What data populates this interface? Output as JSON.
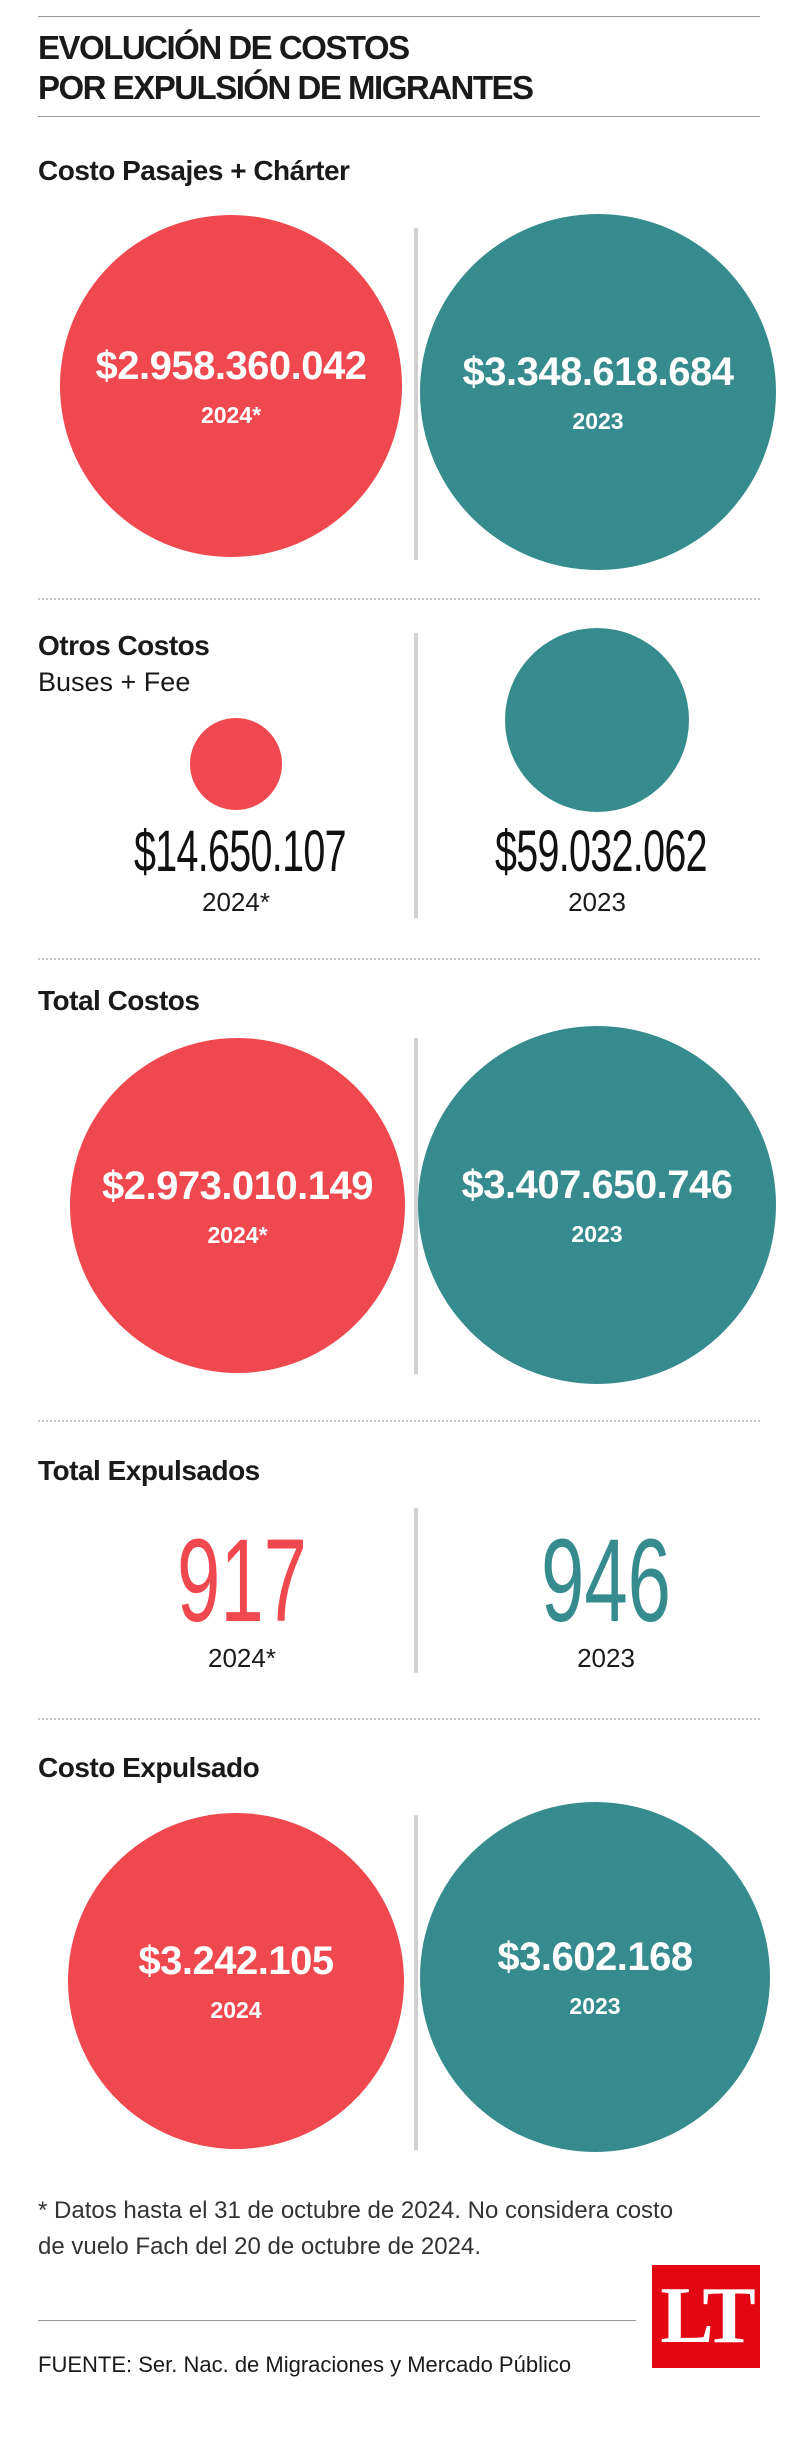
{
  "title_line1": "EVOLUCIÓN DE COSTOS",
  "title_line2": "POR EXPULSIÓN DE MIGRANTES",
  "colors": {
    "y2024": "#f0484f",
    "y2023": "#368b8f"
  },
  "chart_data": [
    {
      "type": "bubble",
      "title": "Costo Pasajes + Chárter",
      "categories": [
        "2024*",
        "2023"
      ],
      "values": [
        2958360042,
        3348618684
      ],
      "labels": [
        "$2.958.360.042",
        "$3.348.618.684"
      ]
    },
    {
      "type": "bubble",
      "title": "Otros Costos",
      "subtitle": "Buses + Fee",
      "categories": [
        "2024*",
        "2023"
      ],
      "values": [
        14650107,
        59032062
      ],
      "labels": [
        "$14.650.107",
        "$59.032.062"
      ]
    },
    {
      "type": "bubble",
      "title": "Total Costos",
      "categories": [
        "2024*",
        "2023"
      ],
      "values": [
        2973010149,
        3407650746
      ],
      "labels": [
        "$2.973.010.149",
        "$3.407.650.746"
      ]
    },
    {
      "type": "table",
      "title": "Total Expulsados",
      "categories": [
        "2024*",
        "2023"
      ],
      "values": [
        917,
        946
      ],
      "labels": [
        "917",
        "946"
      ]
    },
    {
      "type": "bubble",
      "title": "Costo Expulsado",
      "categories": [
        "2024",
        "2023"
      ],
      "values": [
        3242105,
        3602168
      ],
      "labels": [
        "$3.242.105",
        "$3.602.168"
      ]
    }
  ],
  "footnote": "* Datos hasta el 31 de octubre de 2024. No considera costo de vuelo Fach del 20 de octubre de 2024.",
  "source": "FUENTE: Ser. Nac. de Migraciones y Mercado Público",
  "logo_text": "LT",
  "icons": {
    "logo": "la-tercera-logo"
  }
}
